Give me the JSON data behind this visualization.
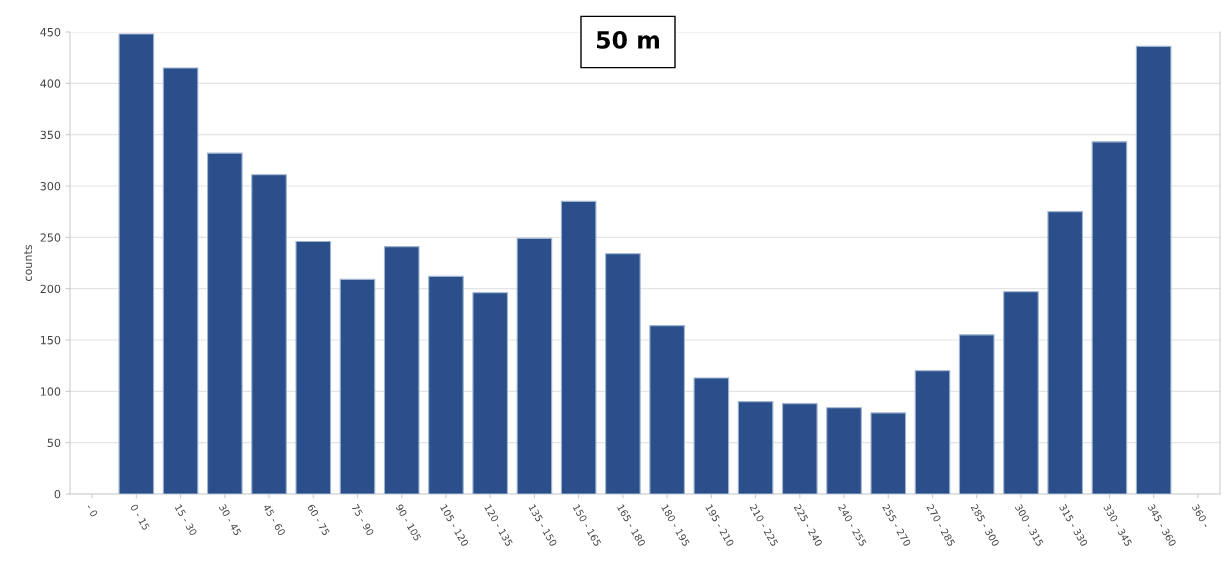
{
  "chart_data": {
    "type": "bar",
    "title": "50 m",
    "ylabel": "counts",
    "categories": [
      "- 0",
      "0 - 15",
      "15 - 30",
      "30 - 45",
      "45 - 60",
      "60 - 75",
      "75 - 90",
      "90 - 105",
      "105 - 120",
      "120 - 135",
      "135 - 150",
      "150 - 165",
      "165 - 180",
      "180 - 195",
      "195 - 210",
      "210 - 225",
      "225 - 240",
      "240 - 255",
      "255 - 270",
      "270 - 285",
      "285 - 300",
      "300 - 315",
      "315 - 330",
      "330 - 345",
      "345 - 360",
      "360 -"
    ],
    "values": [
      null,
      448,
      415,
      332,
      311,
      246,
      209,
      241,
      212,
      196,
      249,
      285,
      234,
      164,
      113,
      90,
      88,
      84,
      79,
      120,
      155,
      197,
      275,
      343,
      436,
      null
    ],
    "color": "#2a4f8a",
    "ylim": [
      0,
      450
    ],
    "yticks": [
      0,
      50,
      100,
      150,
      200,
      250,
      300,
      350,
      400,
      450
    ],
    "grid": "y",
    "legend": false
  }
}
